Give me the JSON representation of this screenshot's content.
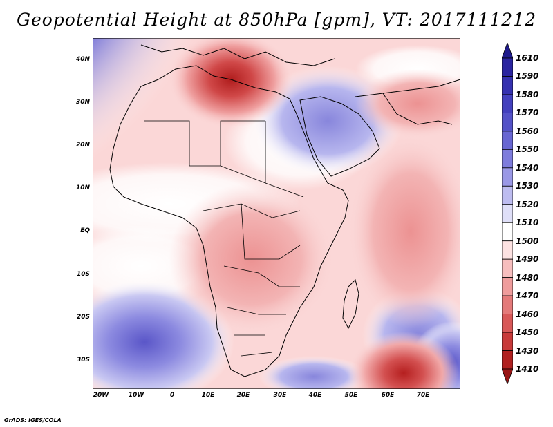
{
  "title": "Geopotential Height at 850hPa [gpm], VT: 2017111212",
  "credit": "GrADS: IGES/COLA",
  "lat_labels": [
    "40N",
    "30N",
    "20N",
    "10N",
    "EQ",
    "10S",
    "20S",
    "30S"
  ],
  "lon_labels": [
    "20W",
    "10W",
    "0",
    "10E",
    "20E",
    "30E",
    "40E",
    "50E",
    "60E",
    "70E"
  ],
  "colorbar": {
    "levels": [
      "1610",
      "1590",
      "1580",
      "1570",
      "1560",
      "1550",
      "1540",
      "1530",
      "1520",
      "1510",
      "1500",
      "1490",
      "1480",
      "1470",
      "1460",
      "1450",
      "1430",
      "1410"
    ],
    "colors": [
      "#1e1a8c",
      "#2a24a0",
      "#3531b0",
      "#4340be",
      "#5452c8",
      "#6866d2",
      "#7e7cdc",
      "#9a98e6",
      "#bdbcf0",
      "#dfdff8",
      "#ffffff",
      "#fde2e2",
      "#f7bebe",
      "#ef9c9c",
      "#e47a7a",
      "#d85858",
      "#c83a3a",
      "#b02020",
      "#981515"
    ]
  },
  "map": {
    "background_color": "#fbd7d7",
    "high_color": "#4a45c2",
    "low_color": "#c02c2c"
  }
}
